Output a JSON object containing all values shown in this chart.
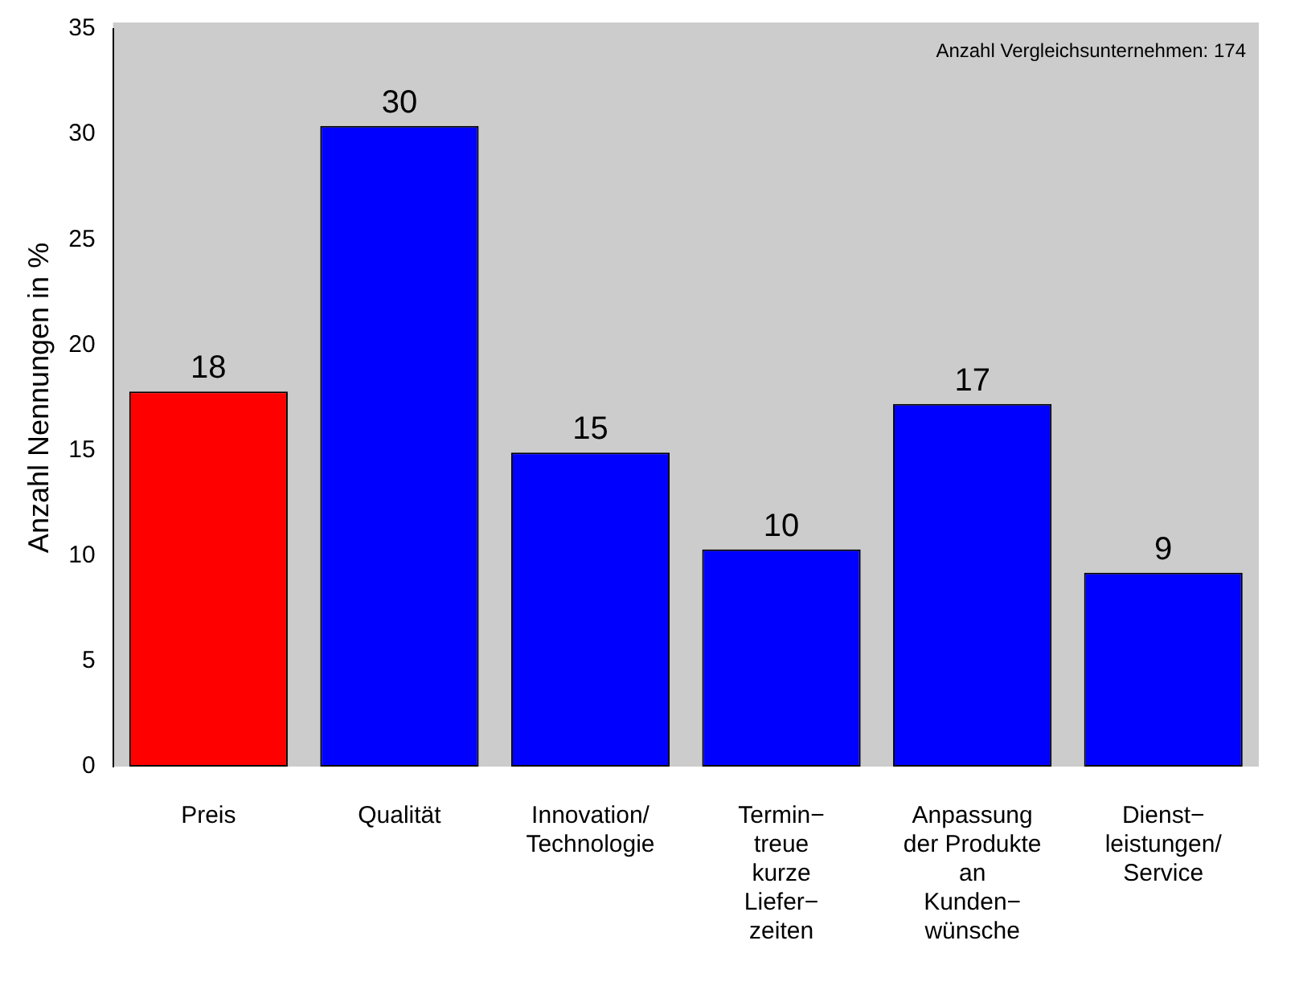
{
  "chart_data": {
    "type": "bar",
    "ylabel": "Anzahl Nennungen in %",
    "categories": [
      "Preis",
      "Qualität",
      "Innovation/\nTechnologie",
      "Termin−\ntreue\nkurze\nLiefer−\nzeiten",
      "Anpassung\nder Produkte\nan\nKunden−\nwünsche",
      "Dienst−\nleistungen/\nService"
    ],
    "values": [
      17.8,
      30.4,
      14.9,
      10.3,
      17.2,
      9.2
    ],
    "colors": [
      "#ff0000",
      "#0000ff",
      "#0000ff",
      "#0000ff",
      "#0000ff",
      "#0000ff"
    ],
    "value_labels": [
      "18",
      "30",
      "15",
      "10",
      "17",
      "9"
    ],
    "ylim": [
      0,
      35
    ],
    "yticks": [
      0,
      5,
      10,
      15,
      20,
      25,
      30,
      35
    ],
    "annotations": [
      "Anzahl Vergleichsunternehmen: 174"
    ],
    "grid": false,
    "legend": false
  }
}
